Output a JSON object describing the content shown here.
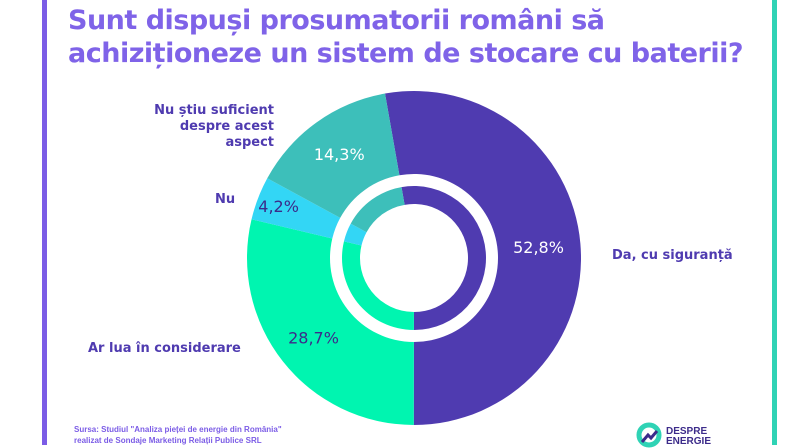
{
  "title_line1": "Sunt dispuși prosumatorii români să",
  "title_line2": "achiziționeze un sistem de stocare cu baterii?",
  "chart_data": {
    "type": "pie",
    "title": "Sunt dispuși prosumatorii români să achiziționeze un sistem de stocare cu baterii?",
    "slices": [
      {
        "label": "Da, cu siguranță",
        "value": 52.8,
        "value_label": "52,8%",
        "color": "#4f3bb0",
        "text_color": "#ffffff"
      },
      {
        "label": "Ar lua în considerare",
        "value": 28.7,
        "value_label": "28,7%",
        "color": "#00f5b0",
        "text_color": "#3c2b8a"
      },
      {
        "label": "Nu",
        "value": 4.2,
        "value_label": "4,2%",
        "color": "#33d6f5",
        "text_color": "#3c2b8a"
      },
      {
        "label": "Nu știu suficient despre acest aspect",
        "value": 14.3,
        "value_label": "14,3%",
        "color": "#3dbfba",
        "text_color": "#ffffff"
      }
    ],
    "legend": "none"
  },
  "labels": {
    "nustiu_line1": "Nu știu suficient",
    "nustiu_line2": "despre acest aspect",
    "nu": "Nu",
    "ar_lua": "Ar lua în considerare",
    "da": "Da, cu siguranță"
  },
  "source_line1": "Sursa: Studiul \"Analiza pieței de energie din România\"",
  "source_line2": "realizat de Sondaje Marketing Relații Publice SRL",
  "logo": {
    "line1": "DESPRE",
    "line2": "ENERGIE"
  }
}
